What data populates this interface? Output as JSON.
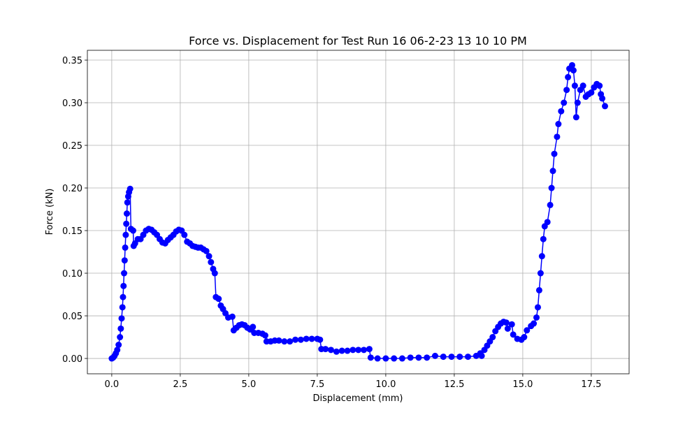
{
  "chart_data": {
    "type": "line",
    "title": "Force vs. Displacement for Test Run 16 06-2-23 13 10 10 PM",
    "xlabel": "Displacement (mm)",
    "ylabel": "Force (kN)",
    "grid": true,
    "xlim": [
      -0.89,
      18.88
    ],
    "ylim": [
      -0.018,
      0.3615
    ],
    "xticks": [
      {
        "value": 0,
        "label": "0.0"
      },
      2.5,
      {
        "value": 5,
        "label": "5.0"
      },
      7.5,
      {
        "value": 10,
        "label": "10.0"
      },
      12.5,
      {
        "value": 15,
        "label": "15.0"
      },
      17.5
    ],
    "yticks": [
      {
        "value": 0,
        "label": "0.00"
      },
      {
        "value": 0.05,
        "label": "0.05"
      },
      {
        "value": 0.1,
        "label": "0.10"
      },
      {
        "value": 0.15,
        "label": "0.15"
      },
      {
        "value": 0.2,
        "label": "0.20"
      },
      {
        "value": 0.25,
        "label": "0.25"
      },
      {
        "value": 0.3,
        "label": "0.30"
      },
      {
        "value": 0.35,
        "label": "0.35"
      }
    ],
    "x": [
      0,
      0.05,
      0.1,
      0.15,
      0.2,
      0.25,
      0.3,
      0.33,
      0.36,
      0.39,
      0.41,
      0.43,
      0.45,
      0.47,
      0.49,
      0.51,
      0.53,
      0.55,
      0.57,
      0.6,
      0.63,
      0.67,
      0.7,
      0.78,
      0.8,
      0.85,
      0.95,
      1.05,
      1.15,
      1.25,
      1.35,
      1.45,
      1.55,
      1.65,
      1.75,
      1.85,
      1.95,
      2.05,
      2.15,
      2.25,
      2.35,
      2.45,
      2.55,
      2.65,
      2.75,
      2.85,
      2.95,
      3.05,
      3.15,
      3.25,
      3.35,
      3.45,
      3.55,
      3.62,
      3.7,
      3.76,
      3.8,
      3.9,
      3.98,
      4.06,
      4.15,
      4.25,
      4.4,
      4.45,
      4.55,
      4.65,
      4.75,
      4.85,
      4.95,
      5.05,
      5.15,
      5.2,
      5.35,
      5.5,
      5.6,
      5.65,
      5.8,
      5.95,
      6.1,
      6.3,
      6.5,
      6.7,
      6.9,
      7.1,
      7.3,
      7.5,
      7.6,
      7.65,
      7.8,
      8.0,
      8.2,
      8.4,
      8.6,
      8.8,
      9.0,
      9.2,
      9.4,
      9.45,
      9.7,
      10.0,
      10.3,
      10.6,
      10.9,
      11.2,
      11.5,
      11.8,
      12.1,
      12.4,
      12.7,
      13.0,
      13.3,
      13.45,
      13.5,
      13.6,
      13.7,
      13.8,
      13.9,
      14.0,
      14.1,
      14.2,
      14.3,
      14.4,
      14.45,
      14.6,
      14.65,
      14.8,
      14.95,
      15.05,
      15.15,
      15.3,
      15.4,
      15.5,
      15.55,
      15.6,
      15.65,
      15.7,
      15.75,
      15.8,
      15.9,
      16.0,
      16.05,
      16.1,
      16.15,
      16.25,
      16.3,
      16.4,
      16.5,
      16.6,
      16.65,
      16.7,
      16.8,
      16.85,
      16.9,
      16.95,
      17.0,
      17.1,
      17.2,
      17.3,
      17.4,
      17.5,
      17.6,
      17.7,
      17.8,
      17.85,
      17.9,
      18.0
    ],
    "series": [
      {
        "color": "#0000ff",
        "values": [
          0,
          0.001,
          0.003,
          0.006,
          0.01,
          0.016,
          0.025,
          0.035,
          0.047,
          0.06,
          0.072,
          0.085,
          0.1,
          0.115,
          0.13,
          0.145,
          0.158,
          0.17,
          0.183,
          0.19,
          0.195,
          0.199,
          0.152,
          0.15,
          0.132,
          0.135,
          0.14,
          0.14,
          0.145,
          0.15,
          0.152,
          0.151,
          0.148,
          0.145,
          0.14,
          0.136,
          0.135,
          0.139,
          0.142,
          0.145,
          0.149,
          0.151,
          0.15,
          0.145,
          0.137,
          0.135,
          0.132,
          0.131,
          0.13,
          0.13,
          0.128,
          0.126,
          0.12,
          0.113,
          0.105,
          0.1,
          0.072,
          0.07,
          0.062,
          0.058,
          0.053,
          0.048,
          0.049,
          0.033,
          0.036,
          0.039,
          0.04,
          0.039,
          0.036,
          0.034,
          0.037,
          0.03,
          0.03,
          0.029,
          0.027,
          0.02,
          0.02,
          0.021,
          0.021,
          0.02,
          0.02,
          0.022,
          0.022,
          0.023,
          0.023,
          0.023,
          0.022,
          0.011,
          0.011,
          0.01,
          0.008,
          0.009,
          0.009,
          0.01,
          0.01,
          0.01,
          0.011,
          0.001,
          0,
          0,
          0,
          0,
          0.001,
          0.001,
          0.001,
          0.003,
          0.002,
          0.002,
          0.002,
          0.002,
          0.003,
          0.006,
          0.003,
          0.01,
          0.015,
          0.02,
          0.025,
          0.032,
          0.037,
          0.041,
          0.043,
          0.042,
          0.035,
          0.04,
          0.028,
          0.023,
          0.022,
          0.025,
          0.033,
          0.038,
          0.041,
          0.048,
          0.06,
          0.08,
          0.1,
          0.12,
          0.14,
          0.155,
          0.16,
          0.18,
          0.2,
          0.22,
          0.24,
          0.26,
          0.275,
          0.29,
          0.3,
          0.315,
          0.33,
          0.34,
          0.344,
          0.338,
          0.32,
          0.283,
          0.3,
          0.315,
          0.32,
          0.307,
          0.31,
          0.312,
          0.318,
          0.322,
          0.32,
          0.31,
          0.305,
          0.296
        ]
      }
    ]
  }
}
